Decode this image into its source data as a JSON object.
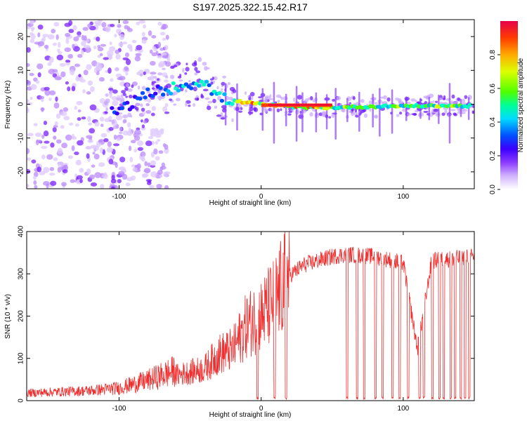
{
  "title": "S197.2025.322.15.42.R17",
  "chart_data": [
    {
      "type": "heatmap",
      "name": "spectrogram",
      "xlabel": "Height of straight line (km)",
      "ylabel": "Frequency (Hz)",
      "xlim": [
        -165,
        150
      ],
      "ylim": [
        -25,
        25
      ],
      "xticks": [
        -100,
        0,
        100
      ],
      "yticks": [
        -20,
        -10,
        0,
        10,
        20
      ],
      "colorbar": {
        "label": "Normalized spectral amplitude",
        "range": [
          0,
          1
        ],
        "ticks": [
          0.0,
          0.2,
          0.4,
          0.6,
          0.8
        ],
        "tick_labels": [
          "0.0",
          "0.2",
          "0.4",
          "0.6",
          "0.8"
        ],
        "colormap": [
          "#ffffff",
          "#d2b4ff",
          "#8c3cff",
          "#3c00ff",
          "#0050ff",
          "#00dcff",
          "#00ff96",
          "#50ff00",
          "#dcff00",
          "#ffaa00",
          "#ff3c00",
          "#e6004b"
        ]
      },
      "ridge": {
        "description_points_x": [
          -100,
          -80,
          -60,
          -40,
          -30,
          -20,
          0,
          30,
          50,
          100,
          150
        ],
        "description_points_freq": [
          -2,
          3,
          5,
          7,
          2,
          1,
          0,
          -1,
          -1,
          -0.5,
          -0.5
        ]
      }
    },
    {
      "type": "line",
      "name": "snr",
      "xlabel": "Height of straight line (km)",
      "ylabel": "SNR (10 * v/v)",
      "xlim": [
        -165,
        150
      ],
      "ylim": [
        0,
        400
      ],
      "xticks": [
        -100,
        0,
        100
      ],
      "yticks": [
        0,
        100,
        200,
        300,
        400
      ],
      "color": "#f03030",
      "envelope_x": [
        -165,
        -120,
        -100,
        -80,
        -60,
        -40,
        -30,
        -20,
        -10,
        0,
        10,
        20,
        30,
        40,
        50,
        60,
        80,
        100,
        110,
        120,
        150
      ],
      "envelope_y": [
        15,
        20,
        25,
        40,
        60,
        75,
        110,
        120,
        180,
        200,
        240,
        300,
        325,
        335,
        345,
        350,
        345,
        330,
        125,
        335,
        345
      ],
      "dropouts_km": [
        -3,
        -2,
        9,
        10,
        17,
        18,
        60,
        61,
        67,
        68,
        72,
        73,
        80,
        81,
        85,
        86,
        92,
        93,
        97,
        98,
        103,
        104,
        111,
        112,
        114,
        115,
        120,
        121,
        125,
        126,
        128,
        129,
        133,
        134,
        136,
        137,
        140,
        141,
        143,
        144,
        146,
        147
      ]
    }
  ]
}
